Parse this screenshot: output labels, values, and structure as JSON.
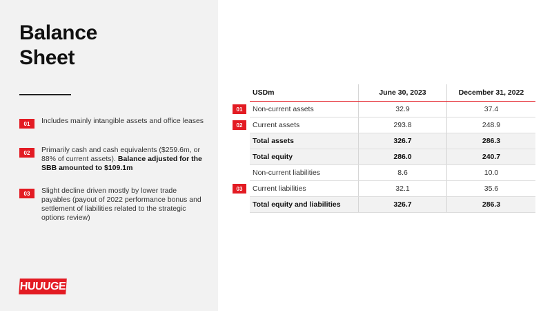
{
  "slide": {
    "title_line1": "Balance",
    "title_line2": "Sheet"
  },
  "notes": [
    {
      "badge": "01",
      "text": "Includes mainly intangible assets and office leases"
    },
    {
      "badge": "02",
      "text": "Primarily cash and cash equivalents ($259.6m, or 88% of current assets). ",
      "bold_text": "Balance adjusted for the SBB amounted to $109.1m"
    },
    {
      "badge": "03",
      "text": "Slight decline driven mostly by lower trade payables (payout of 2022 performance bonus and settlement of liabilities related to the strategic options review)"
    }
  ],
  "logo": "HUUUGE",
  "table": {
    "headers": [
      "USDm",
      "June 30, 2023",
      "December 31, 2022"
    ],
    "rows": [
      {
        "label": "Non-current assets",
        "v1": "32.9",
        "v2": "37.4",
        "badge": "01"
      },
      {
        "label": "Current assets",
        "v1": "293.8",
        "v2": "248.9",
        "badge": "02"
      },
      {
        "label": "Total assets",
        "v1": "326.7",
        "v2": "286.3"
      },
      {
        "label": "Total equity",
        "v1": "286.0",
        "v2": "240.7"
      },
      {
        "label": "Non-current liabilities",
        "v1": "8.6",
        "v2": "10.0"
      },
      {
        "label": "Current liabilities",
        "v1": "32.1",
        "v2": "35.6",
        "badge": "03"
      },
      {
        "label": "Total equity and liabilities",
        "v1": "326.7",
        "v2": "286.3"
      }
    ]
  },
  "colors": {
    "accent": "#e31b23",
    "panel": "#f2f2f2"
  }
}
